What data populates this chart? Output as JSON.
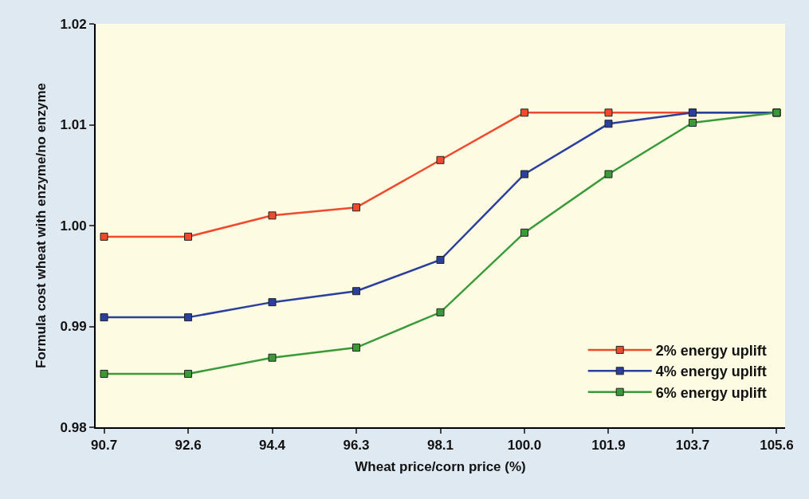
{
  "chart_data": {
    "type": "line",
    "xlabel": "Wheat price/corn price (%)",
    "ylabel": "Formula cost wheat with enzyme/no enzyme",
    "categories": [
      "90.7",
      "92.6",
      "94.4",
      "96.3",
      "98.1",
      "100.0",
      "101.9",
      "103.7",
      "105.6"
    ],
    "series": [
      {
        "name": "2% energy uplift",
        "color": "#f04a2e",
        "values": [
          0.9989,
          0.9989,
          1.001,
          1.0018,
          1.0065,
          1.0112,
          1.0112,
          1.0112,
          1.0112
        ]
      },
      {
        "name": "4% energy uplift",
        "color": "#2b3f9e",
        "values": [
          0.9909,
          0.9909,
          0.9924,
          0.9935,
          0.9966,
          1.0051,
          1.0101,
          1.0112,
          1.0112
        ]
      },
      {
        "name": "6% energy uplift",
        "color": "#3a9a3a",
        "values": [
          0.9853,
          0.9853,
          0.9869,
          0.9879,
          0.9914,
          0.9993,
          1.0051,
          1.0102,
          1.0112
        ]
      }
    ],
    "ylim": [
      0.98,
      1.02
    ],
    "yticks": [
      {
        "value": 0.98,
        "label": "0.98"
      },
      {
        "value": 0.99,
        "label": "0.99"
      },
      {
        "value": 1.0,
        "label": "1.00"
      },
      {
        "value": 1.01,
        "label": "1.01"
      },
      {
        "value": 1.02,
        "label": "1.02"
      }
    ],
    "grid": false,
    "legend": "bottom right",
    "marker": "square",
    "line_style": "solid"
  }
}
